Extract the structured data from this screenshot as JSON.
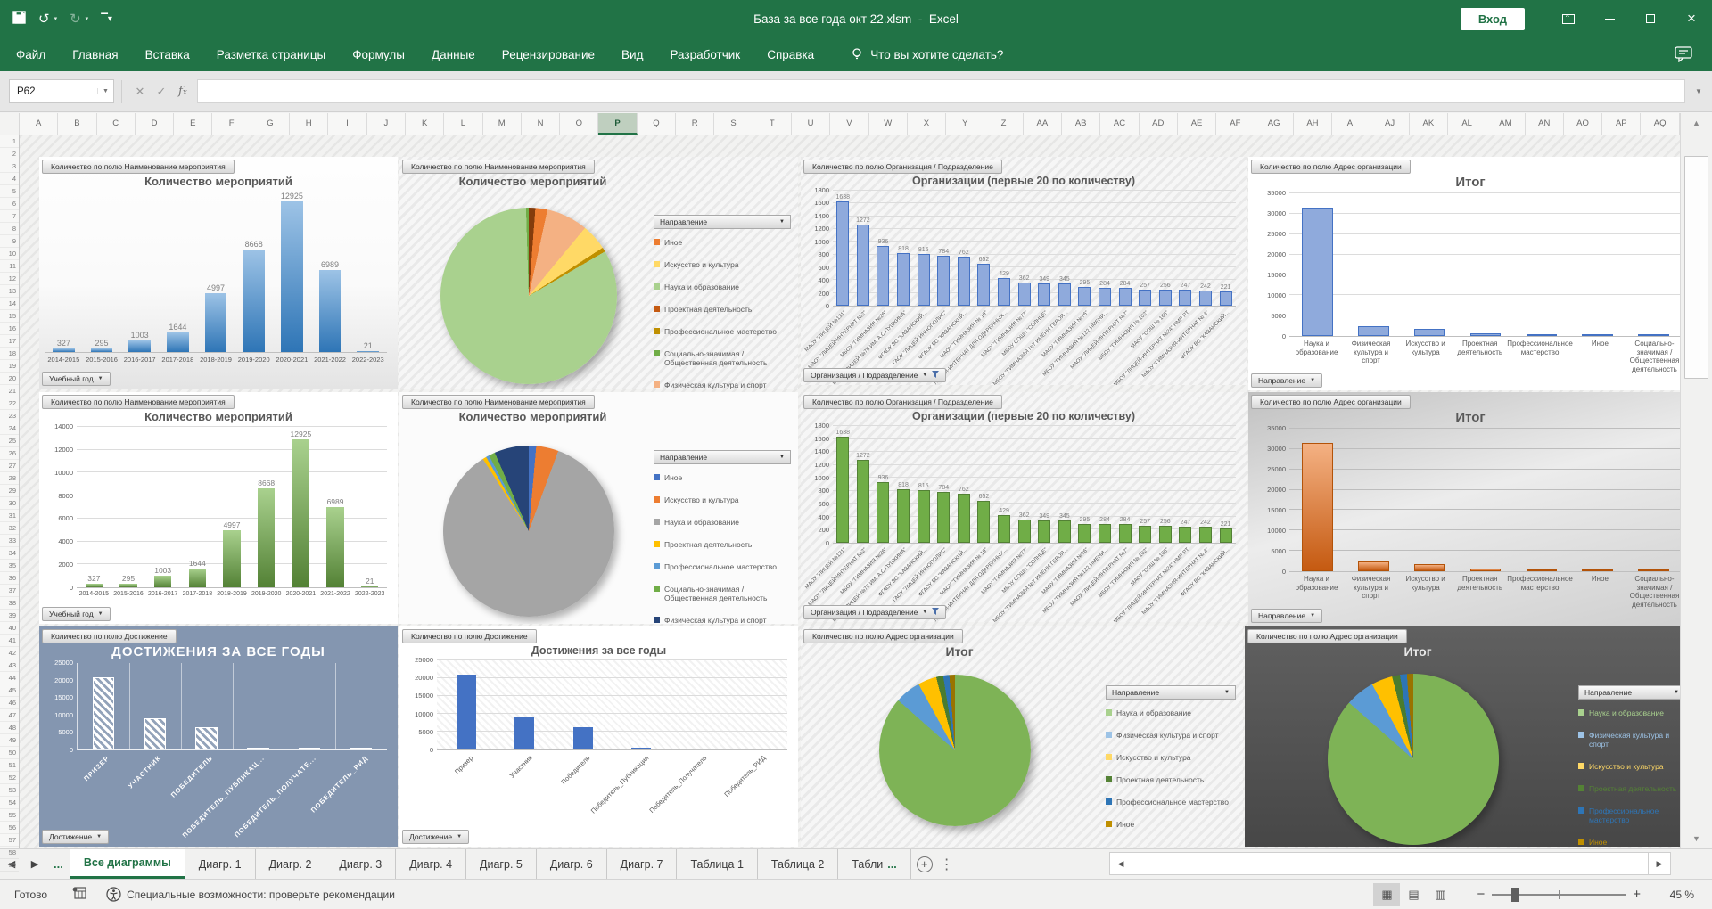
{
  "titlebar": {
    "title": "База за все года окт 22.xlsm",
    "separator": "-",
    "app": "Excel",
    "signin": "Вход"
  },
  "menu": {
    "items": [
      "Файл",
      "Главная",
      "Вставка",
      "Разметка страницы",
      "Формулы",
      "Данные",
      "Рецензирование",
      "Вид",
      "Разработчик",
      "Справка"
    ],
    "tell_me": "Что вы хотите сделать?"
  },
  "name_box": "P62",
  "sheet": {
    "columns": [
      "A",
      "B",
      "C",
      "D",
      "E",
      "F",
      "G",
      "H",
      "I",
      "J",
      "K",
      "L",
      "M",
      "N",
      "O",
      "P",
      "Q",
      "R",
      "S",
      "T",
      "U",
      "V",
      "W",
      "X",
      "Y",
      "Z",
      "AA",
      "AB",
      "AC",
      "AD",
      "AE",
      "AF",
      "AG",
      "AH",
      "AI",
      "AJ",
      "AK",
      "AL",
      "AM",
      "AN",
      "AO",
      "AP",
      "AQ"
    ],
    "selected_column": "P",
    "row_count": 59
  },
  "chart_data": [
    {
      "type": "bar",
      "title": "Количество мероприятий",
      "field_button": "Количество по полю Наименование мероприятия",
      "axis_button": "Учебный год",
      "categories": [
        "2014-2015",
        "2015-2016",
        "2016-2017",
        "2017-2018",
        "2018-2019",
        "2019-2020",
        "2020-2021",
        "2021-2022",
        "2022-2023"
      ],
      "values": [
        327,
        295,
        1003,
        1644,
        4997,
        8668,
        12925,
        6989,
        21
      ],
      "data_labels": true,
      "ylim": [
        0,
        13600
      ],
      "bar_gradient": [
        "#9DC3E6",
        "#2E75B6"
      ]
    },
    {
      "type": "pie",
      "title": "Количество мероприятий",
      "field_button": "Количество по полю Наименование мероприятия",
      "legend_title": "Направление",
      "legend": [
        {
          "label": "Иное",
          "color": "#ED7D31"
        },
        {
          "label": "Искусство и культура",
          "color": "#FFD966"
        },
        {
          "label": "Наука и образование",
          "color": "#A9D18E"
        },
        {
          "label": "Проектная деятельность",
          "color": "#C55A11"
        },
        {
          "label": "Профессиональное мастерство",
          "color": "#BF8F00"
        },
        {
          "label": "Социально-значимая / Общественная деятельность",
          "color": "#70AD47"
        },
        {
          "label": "Физическая культура и спорт",
          "color": "#F4B183"
        }
      ],
      "slices": [
        {
          "label": "Проектная деятельность",
          "pct": 1.2,
          "color": "#843C0C"
        },
        {
          "label": "Иное",
          "pct": 2.2,
          "color": "#ED7D31"
        },
        {
          "label": "Физическая культура и спорт",
          "pct": 7.6,
          "color": "#F4B183"
        },
        {
          "label": "Искусство и культура",
          "pct": 4.8,
          "color": "#FFD966"
        },
        {
          "label": "Профессиональное мастерство",
          "pct": 0.8,
          "color": "#BF8F00"
        },
        {
          "label": "Наука и образование",
          "pct": 82.9,
          "color": "#A9D18E"
        },
        {
          "label": "Социально-значимая / Общественная деятельность",
          "pct": 0.5,
          "color": "#70AD47"
        }
      ]
    },
    {
      "type": "bar",
      "title": "Организации (первые 20 по количеству)",
      "field_button": "Количество по полю Организация / Подразделение",
      "axis_button": "Организация / Подразделение",
      "filter_icon": true,
      "categories": [
        "МАОУ \"ЛИЦЕЙ №131\"",
        "МАОУ \"ЛИЦЕЙ-ИНТЕРНАТ №2\"",
        "МБОУ \"ГИМНАЗИЯ №26\"",
        "МАОУ \"ЛИЦЕЙ №78 ИМ. А.С.ПУШКИНА\"",
        "ФГАОУ ВО \"КАЗАНСКИЙ...",
        "ГАОУ \"ЛИЦЕЙ ИННОПОЛИС\"",
        "ФГАОУ ВО \"КАЗАНСКИЙ...",
        "МАОУ \"ГИМНАЗИЯ № 19\"",
        "ЛИЦЕЙ-ИНТЕРНАТ ДЛЯ ОДАРЕННЫХ...",
        "МАОУ \"ГИМНАЗИЯ №77\"",
        "МБОУ СОШИ \"СОЛНЦЕ\"",
        "МБОУ \"ГИМНАЗИЯ №7 ИМЕНИ ГЕРОЯ...",
        "МАОУ \"ГИМНАЗИЯ №76\"",
        "МБОУ \"ГИМНАЗИЯ №122 ИМЕНИ...",
        "МАОУ \"ЛИЦЕЙ-ИНТЕРНАТ №7\"",
        "МБОУ \"ГИМНАЗИЯ № 102\"",
        "МАОУ \"СОШ № 165\"",
        "МБОУ \"ЛИЦЕЙ-ИНТЕРНАТ №24\" НМР РТ",
        "МАОУ \"ГИМНАЗИЯ-ИНТЕРНАТ № 4\"",
        "ФГАОУ ВО \"КАЗАНСКИЙ..."
      ],
      "values": [
        1638,
        1272,
        936,
        818,
        815,
        784,
        762,
        652,
        429,
        362,
        349,
        345,
        295,
        284,
        284,
        257,
        256,
        247,
        242,
        221
      ],
      "data_labels": true,
      "rotate_cats": true,
      "yticks": [
        0,
        200,
        400,
        600,
        800,
        1000,
        1200,
        1400,
        1600,
        1800
      ],
      "ylim": [
        0,
        1800
      ],
      "bar_color": "#8FAADC",
      "bar_border": "#4472C4"
    },
    {
      "type": "bar",
      "title": "Итог",
      "field_button": "Количество по полю Адрес организации",
      "axis_button": "Направление",
      "categories": [
        "Наука и образование",
        "Физическая культура и спорт",
        "Искусство и культура",
        "Проектная деятельность",
        "Профессиональное мастерство",
        "Иное",
        "Социально-значимая / Общественная деятельность"
      ],
      "values": [
        31500,
        2500,
        1700,
        600,
        400,
        350,
        300
      ],
      "yticks": [
        0,
        5000,
        10000,
        15000,
        20000,
        25000,
        30000,
        35000
      ],
      "ylim": [
        0,
        35000
      ],
      "bar_color": "#8FAADC",
      "bar_border": "#4472C4"
    },
    {
      "type": "bar",
      "title": "Количество мероприятий",
      "field_button": "Количество по полю Наименование мероприятия",
      "axis_button": "Учебный год",
      "categories": [
        "2014-2015",
        "2015-2016",
        "2016-2017",
        "2017-2018",
        "2018-2019",
        "2019-2020",
        "2020-2021",
        "2021-2022",
        "2022-2023"
      ],
      "values": [
        327,
        295,
        1003,
        1644,
        4997,
        8668,
        12925,
        6989,
        21
      ],
      "data_labels": true,
      "yticks": [
        0,
        2000,
        4000,
        6000,
        8000,
        10000,
        12000,
        14000
      ],
      "ylim": [
        0,
        14000
      ],
      "bar_gradient": [
        "#A9D18E",
        "#538135"
      ]
    },
    {
      "type": "pie",
      "title": "Количество мероприятий",
      "field_button": "Количество по полю Наименование мероприятия",
      "legend_title": "Направление",
      "legend": [
        {
          "label": "Иное",
          "color": "#4472C4"
        },
        {
          "label": "Искусство и культура",
          "color": "#ED7D31"
        },
        {
          "label": "Наука и образование",
          "color": "#A5A5A5"
        },
        {
          "label": "Проектная деятельность",
          "color": "#FFC000"
        },
        {
          "label": "Профессиональное мастерство",
          "color": "#5B9BD5"
        },
        {
          "label": "Социально-значимая / Общественная деятельность",
          "color": "#70AD47"
        },
        {
          "label": "Физическая культура и спорт",
          "color": "#264478"
        }
      ],
      "slices": [
        {
          "label": "Иное",
          "pct": 1.4,
          "color": "#4472C4"
        },
        {
          "label": "Искусство и культура",
          "pct": 4.2,
          "color": "#ED7D31"
        },
        {
          "label": "Наука и образование",
          "pct": 85.4,
          "color": "#A5A5A5"
        },
        {
          "label": "Проектная деятельность",
          "pct": 0.7,
          "color": "#FFC000"
        },
        {
          "label": "Профессиональное мастерство",
          "pct": 0.6,
          "color": "#5B9BD5"
        },
        {
          "label": "Социально-значимая / Общественная деятельность",
          "pct": 1.2,
          "color": "#70AD47"
        },
        {
          "label": "Физическая культура и спорт",
          "pct": 6.5,
          "color": "#264478"
        }
      ]
    },
    {
      "type": "bar",
      "title": "Организации (первые 20 по количеству)",
      "field_button": "Количество по полю Организация / Подразделение",
      "axis_button": "Организация / Подразделение",
      "filter_icon": true,
      "categories": [
        "МАОУ \"ЛИЦЕЙ №131\"",
        "МАОУ \"ЛИЦЕЙ-ИНТЕРНАТ №2\"",
        "МБОУ \"ГИМНАЗИЯ №26\"",
        "МАОУ \"ЛИЦЕЙ №78 ИМ. А.С.ПУШКИНА\"",
        "ФГАОУ ВО \"КАЗАНСКИЙ...",
        "ГАОУ \"ЛИЦЕЙ ИННОПОЛИС\"",
        "ФГАОУ ВО \"КАЗАНСКИЙ...",
        "МАОУ \"ГИМНАЗИЯ № 19\"",
        "ЛИЦЕЙ-ИНТЕРНАТ ДЛЯ ОДАРЕННЫХ...",
        "МАОУ \"ГИМНАЗИЯ №77\"",
        "МБОУ СОШИ \"СОЛНЦЕ\"",
        "МБОУ \"ГИМНАЗИЯ №7 ИМЕНИ ГЕРОЯ...",
        "МАОУ \"ГИМНАЗИЯ №76\"",
        "МБОУ \"ГИМНАЗИЯ №122 ИМЕНИ...",
        "МАОУ \"ЛИЦЕЙ-ИНТЕРНАТ №7\"",
        "МБОУ \"ГИМНАЗИЯ № 102\"",
        "МАОУ \"СОШ № 165\"",
        "МБОУ \"ЛИЦЕЙ-ИНТЕРНАТ №24\" НМР РТ",
        "МАОУ \"ГИМНАЗИЯ-ИНТЕРНАТ № 4\"",
        "ФГАОУ ВО \"КАЗАНСКИЙ..."
      ],
      "values": [
        1638,
        1272,
        936,
        818,
        815,
        784,
        762,
        652,
        429,
        362,
        349,
        345,
        295,
        284,
        284,
        257,
        256,
        247,
        242,
        221
      ],
      "data_labels": true,
      "rotate_cats": true,
      "yticks": [
        0,
        200,
        400,
        600,
        800,
        1000,
        1200,
        1400,
        1600,
        1800
      ],
      "ylim": [
        0,
        1800
      ],
      "bar_color": "#70AD47",
      "bar_border": "#538135"
    },
    {
      "type": "bar",
      "title": "Итог",
      "field_button": "Количество по полю Адрес организации",
      "axis_button": "Направление",
      "categories": [
        "Наука и образование",
        "Физическая культура и спорт",
        "Искусство и культура",
        "Проектная деятельность",
        "Профессиональное мастерство",
        "Иное",
        "Социально-значимая / Общественная деятельность"
      ],
      "values": [
        31500,
        2500,
        1700,
        600,
        400,
        350,
        300
      ],
      "yticks": [
        0,
        5000,
        10000,
        15000,
        20000,
        25000,
        30000,
        35000
      ],
      "ylim": [
        0,
        35000
      ],
      "bar_gradient": [
        "#F4B183",
        "#C55A11"
      ],
      "bar_border": "#B35309"
    },
    {
      "type": "bar",
      "title": "ДОСТИЖЕНИЯ ЗА ВСЕ ГОДЫ",
      "field_button": "Количество по полю Достижение",
      "axis_button": "Достижение",
      "categories": [
        "ПРИЗЕР",
        "УЧАСТНИК",
        "ПОБЕДИТЕЛЬ",
        "ПОБЕДИТЕЛЬ_ПУБЛИКАЦ...",
        "ПОБЕДИТЕЛЬ_ПОЛУЧАТЕ...",
        "ПОБЕДИТЕЛЬ_РИД"
      ],
      "values": [
        21000,
        9000,
        6500,
        80,
        50,
        50
      ],
      "yticks": [
        0,
        5000,
        10000,
        15000,
        20000,
        25000
      ],
      "ylim": [
        0,
        25000
      ],
      "rotate_cats": true,
      "theme": "slate",
      "vgrid": true,
      "hatch_bars": true
    },
    {
      "type": "bar",
      "title": "Достижения за все годы",
      "field_button": "Количество по полю Достижение",
      "axis_button": "Достижение",
      "categories": [
        "Призер",
        "Участник",
        "Победитель",
        "Победитель_Публикация",
        "Победитель_Получатель",
        "Победитель_РИД"
      ],
      "values": [
        21000,
        9300,
        6300,
        400,
        250,
        250
      ],
      "yticks": [
        0,
        5000,
        10000,
        15000,
        20000,
        25000
      ],
      "ylim": [
        0,
        25000
      ],
      "rotate_cats": true,
      "plot_hatch": true,
      "bar_color": "#4472C4"
    },
    {
      "type": "pie",
      "title": "Итог",
      "field_button": "Количество по полю Адрес организации",
      "legend_title": "Направление",
      "legend": [
        {
          "label": "Наука и образование",
          "color": "#A9D18E"
        },
        {
          "label": "Физическая культура и спорт",
          "color": "#9DC3E6"
        },
        {
          "label": "Искусство и культура",
          "color": "#FFD966"
        },
        {
          "label": "Проектная деятельность",
          "color": "#548235"
        },
        {
          "label": "Профессиональное мастерство",
          "color": "#2E75B6"
        },
        {
          "label": "Иное",
          "color": "#BF8F00"
        }
      ],
      "slices": [
        {
          "label": "Наука и образование",
          "pct": 86.5,
          "color": "#7EB356"
        },
        {
          "label": "Физическая культура и спорт",
          "pct": 5.5,
          "color": "#5B9BD5"
        },
        {
          "label": "Искусство и культура",
          "pct": 4.0,
          "color": "#FFC000"
        },
        {
          "label": "Проектная деятельность",
          "pct": 1.5,
          "color": "#4A7C2F"
        },
        {
          "label": "Профессиональное мастерство",
          "pct": 1.3,
          "color": "#2E75B6"
        },
        {
          "label": "Иное",
          "pct": 1.2,
          "color": "#997300"
        }
      ]
    },
    {
      "type": "pie",
      "title": "Итог",
      "theme": "dark",
      "field_button": "Количество по полю Адрес организации",
      "legend_title": "Направление",
      "legend_text_colored": true,
      "legend": [
        {
          "label": "Наука и образование",
          "color": "#A9D18E"
        },
        {
          "label": "Физическая культура и спорт",
          "color": "#9DC3E6"
        },
        {
          "label": "Искусство и культура",
          "color": "#FFD966"
        },
        {
          "label": "Проектная деятельность",
          "color": "#548235"
        },
        {
          "label": "Профессиональное мастерство",
          "color": "#2E75B6"
        },
        {
          "label": "Иное",
          "color": "#BF8F00"
        }
      ],
      "slices": [
        {
          "label": "Наука и образование",
          "pct": 86.5,
          "color": "#7EB356"
        },
        {
          "label": "Физическая культура и спорт",
          "pct": 5.5,
          "color": "#5B9BD5"
        },
        {
          "label": "Искусство и культура",
          "pct": 4.0,
          "color": "#FFC000"
        },
        {
          "label": "Проектная деятельность",
          "pct": 1.5,
          "color": "#4A7C2F"
        },
        {
          "label": "Профессиональное мастерство",
          "pct": 1.3,
          "color": "#2E75B6"
        },
        {
          "label": "Иное",
          "pct": 1.2,
          "color": "#997300"
        }
      ]
    }
  ],
  "tabs": {
    "nav_dots": "...",
    "sheets": [
      {
        "label": "Все диаграммы",
        "active": true
      },
      {
        "label": "Диагр. 1"
      },
      {
        "label": "Диагр. 2"
      },
      {
        "label": "Диагр. 3"
      },
      {
        "label": "Диагр. 4"
      },
      {
        "label": "Диагр. 5"
      },
      {
        "label": "Диагр. 6"
      },
      {
        "label": "Диагр. 7"
      },
      {
        "label": "Таблица 1"
      },
      {
        "label": "Таблица 2"
      },
      {
        "label": "Табли",
        "dots": "..."
      }
    ],
    "add_label": "+"
  },
  "status": {
    "ready": "Готово",
    "accessibility": "Специальные возможности: проверьте рекомендации",
    "zoom_level": "45 %"
  }
}
